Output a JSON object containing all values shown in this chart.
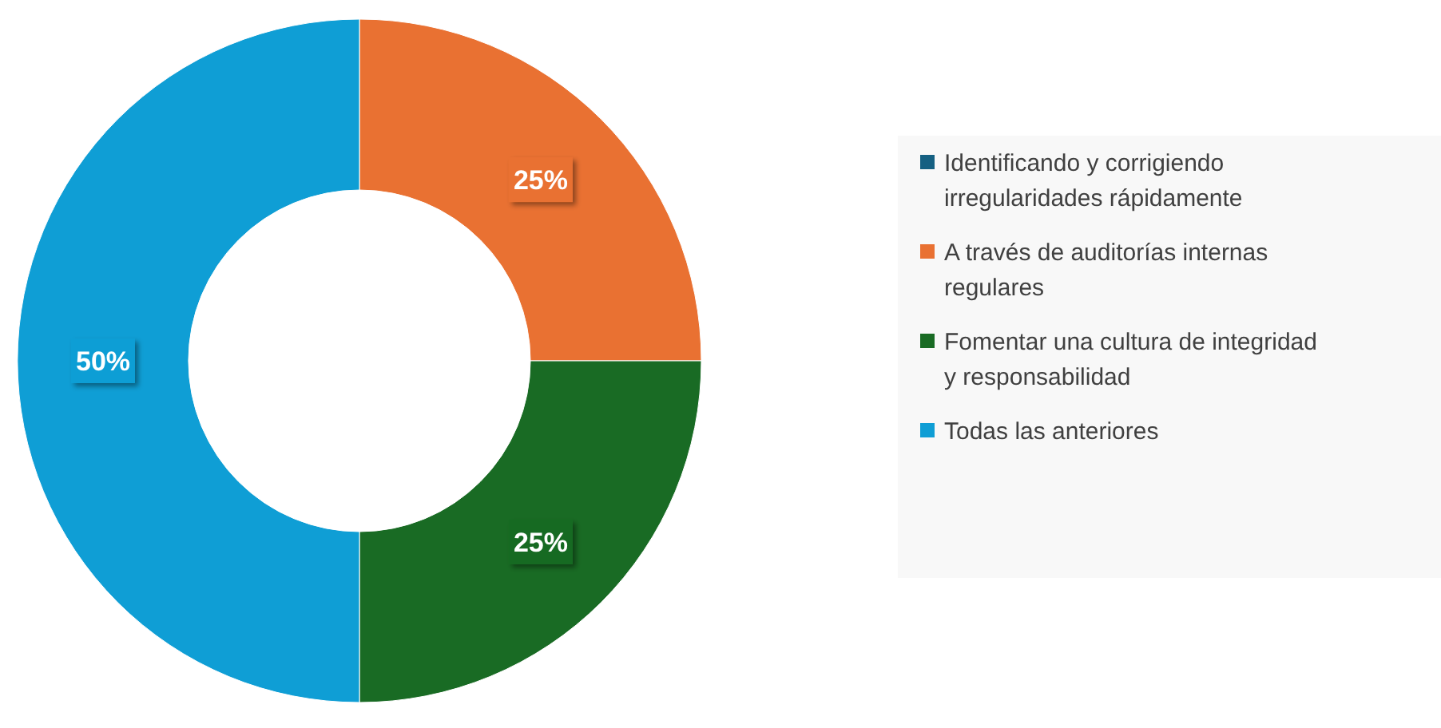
{
  "chart_data": {
    "type": "donut",
    "categories": [
      "Identificando y corrigiendo irregularidades rápidamente",
      "A través de auditorías internas regulares",
      "Fomentar una cultura de integridad y responsabilidad",
      "Todas las anteriores"
    ],
    "values": [
      0,
      25,
      25,
      50
    ],
    "colors": [
      "#156082",
      "#e97132",
      "#196b24",
      "#0f9ed5"
    ],
    "value_labels": [
      null,
      "25%",
      "25%",
      "50%"
    ],
    "legend": "right"
  }
}
